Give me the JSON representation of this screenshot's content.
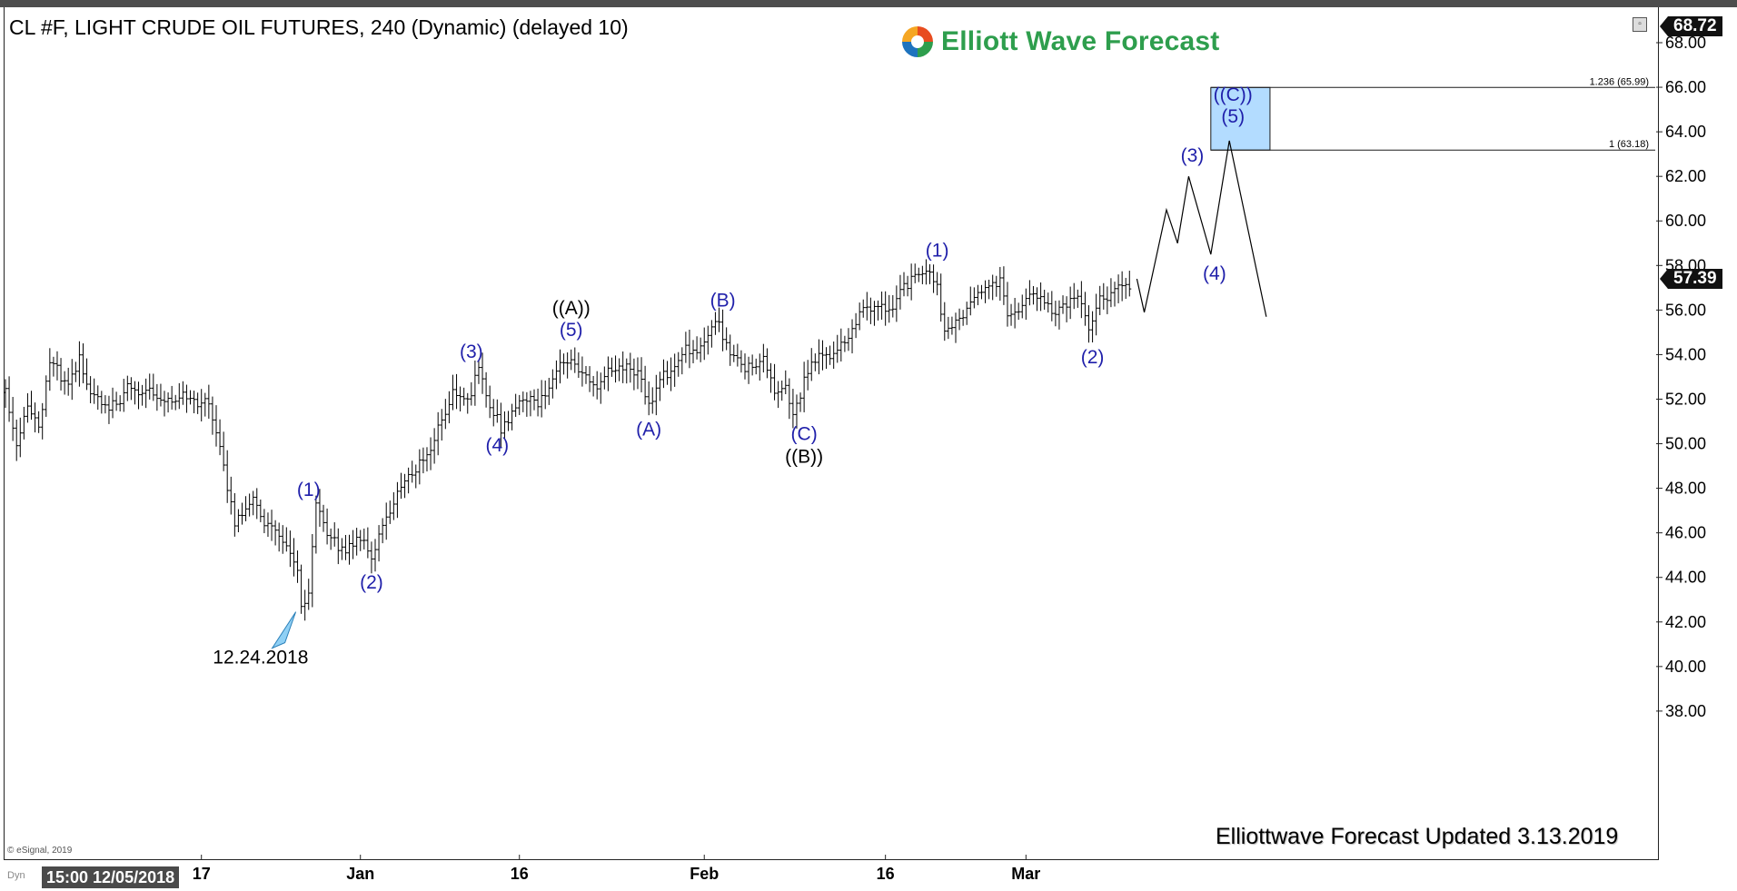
{
  "header": {
    "title": "CL #F, LIGHT CRUDE OIL FUTURES, 240 (Dynamic) (delayed 10)",
    "brand": "Elliott Wave Forecast",
    "updated": "Elliottwave Forecast Updated 3.13.2019",
    "watermark": "© eSignal, 2019",
    "time_box": "15:00 12/05/2018",
    "dyn_label": "Dyn",
    "price_top": "68.72",
    "price_last": "57.39",
    "brand_color": "#2e9e4d",
    "icons": [
      "restore-icon",
      "elliott-wave-logo-icon",
      "triangle-marker-icon"
    ]
  },
  "chart_data": {
    "type": "bar",
    "title": "CL #F, LIGHT CRUDE OIL FUTURES, 240 (Dynamic) (delayed 10)",
    "xlabel": "",
    "ylabel": "",
    "ylim": [
      37.5,
      68.9
    ],
    "y_ticks": [
      "38.00",
      "40.00",
      "42.00",
      "44.00",
      "46.00",
      "48.00",
      "50.00",
      "52.00",
      "54.00",
      "56.00",
      "58.00",
      "60.00",
      "62.00",
      "64.00",
      "66.00",
      "68.00"
    ],
    "x_ticks": [
      {
        "label": "17",
        "bar": 53
      },
      {
        "label": "Jan",
        "bar": 96
      },
      {
        "label": "16",
        "bar": 139
      },
      {
        "label": "Feb",
        "bar": 189
      },
      {
        "label": "16",
        "bar": 238
      },
      {
        "label": "Mar",
        "bar": 276
      }
    ],
    "last_price": 57.39,
    "top_price": 68.72,
    "grid": false,
    "anchors": [
      [
        0,
        52.3
      ],
      [
        3,
        50.2
      ],
      [
        6,
        52.0
      ],
      [
        9,
        50.4
      ],
      [
        12,
        53.5
      ],
      [
        17,
        52.7
      ],
      [
        20,
        54.0
      ],
      [
        23,
        52.1
      ],
      [
        28,
        51.3
      ],
      [
        33,
        52.7
      ],
      [
        38,
        52.3
      ],
      [
        43,
        51.8
      ],
      [
        48,
        52.5
      ],
      [
        51,
        52.0
      ],
      [
        55,
        51.6
      ],
      [
        58,
        49.8
      ],
      [
        62,
        46.6
      ],
      [
        66,
        47.6
      ],
      [
        70,
        46.3
      ],
      [
        75,
        45.7
      ],
      [
        79,
        44.6
      ],
      [
        80,
        42.7
      ],
      [
        82,
        43.1
      ],
      [
        84,
        47.0
      ],
      [
        88,
        45.5
      ],
      [
        92,
        45.4
      ],
      [
        96,
        46.0
      ],
      [
        99,
        44.6
      ],
      [
        102,
        46.2
      ],
      [
        106,
        48.0
      ],
      [
        110,
        48.9
      ],
      [
        114,
        49.2
      ],
      [
        118,
        51.0
      ],
      [
        121,
        52.5
      ],
      [
        125,
        52.2
      ],
      [
        128,
        53.1
      ],
      [
        131,
        51.5
      ],
      [
        134,
        50.8
      ],
      [
        137,
        51.5
      ],
      [
        140,
        52.3
      ],
      [
        144,
        51.6
      ],
      [
        147,
        52.4
      ],
      [
        150,
        53.7
      ],
      [
        153,
        54.1
      ],
      [
        156,
        53.0
      ],
      [
        160,
        52.3
      ],
      [
        164,
        53.3
      ],
      [
        168,
        53.7
      ],
      [
        171,
        53.1
      ],
      [
        174,
        51.5
      ],
      [
        177,
        52.7
      ],
      [
        181,
        53.8
      ],
      [
        184,
        54.5
      ],
      [
        187,
        53.8
      ],
      [
        190,
        54.8
      ],
      [
        193,
        55.3
      ],
      [
        196,
        54.3
      ],
      [
        199,
        53.7
      ],
      [
        202,
        53.2
      ],
      [
        205,
        53.7
      ],
      [
        208,
        52.3
      ],
      [
        211,
        52.7
      ],
      [
        213,
        51.4
      ],
      [
        216,
        52.8
      ],
      [
        219,
        53.6
      ],
      [
        222,
        54.0
      ],
      [
        225,
        54.5
      ],
      [
        228,
        55.0
      ],
      [
        231,
        55.7
      ],
      [
        235,
        56.0
      ],
      [
        239,
        56.1
      ],
      [
        243,
        57.2
      ],
      [
        247,
        57.3
      ],
      [
        250,
        57.5
      ],
      [
        252,
        56.9
      ],
      [
        254,
        55.1
      ],
      [
        257,
        55.6
      ],
      [
        260,
        55.9
      ],
      [
        263,
        56.6
      ],
      [
        266,
        57.0
      ],
      [
        269,
        57.6
      ],
      [
        271,
        55.8
      ],
      [
        274,
        56.0
      ],
      [
        277,
        56.5
      ],
      [
        280,
        56.3
      ],
      [
        283,
        56.0
      ],
      [
        286,
        56.3
      ],
      [
        289,
        56.7
      ],
      [
        292,
        55.7
      ],
      [
        293,
        55.0
      ],
      [
        296,
        56.3
      ],
      [
        299,
        57.0
      ],
      [
        302,
        57.4
      ],
      [
        304,
        57.2
      ]
    ],
    "projection": [
      [
        306,
        57.4
      ],
      [
        308,
        55.9
      ],
      [
        314,
        60.5
      ],
      [
        317,
        59.0
      ],
      [
        320,
        62.0
      ],
      [
        326,
        58.5
      ],
      [
        331,
        63.6
      ],
      [
        341,
        55.7
      ]
    ],
    "target_box": {
      "y_low": 63.18,
      "y_high": 65.99,
      "x_start": 326,
      "x_end": 342
    },
    "fib_levels": [
      {
        "label": "1.236 (65.99)",
        "value": 65.99
      },
      {
        "label": "1 (63.18)",
        "value": 63.18
      }
    ],
    "annotations": [
      {
        "text": "(1)",
        "bar": 82,
        "y": 47.0,
        "dy": -16,
        "color": "#1f1faa"
      },
      {
        "text": "(2)",
        "bar": 99,
        "y": 44.6,
        "dy": 19,
        "color": "#1f1faa"
      },
      {
        "text": "(3)",
        "bar": 126,
        "y": 53.2,
        "dy": -16,
        "color": "#1f1faa"
      },
      {
        "text": "(4)",
        "bar": 133,
        "y": 50.8,
        "dy": 20,
        "color": "#1f1faa"
      },
      {
        "text": "(5)",
        "bar": 153,
        "y": 54.1,
        "dy": -18,
        "color": "#1f1faa"
      },
      {
        "text": "((A))",
        "bar": 153,
        "y": 54.1,
        "dy": -42,
        "color": "#000000"
      },
      {
        "text": "(A)",
        "bar": 174,
        "y": 51.5,
        "dy": 20,
        "color": "#1f1faa"
      },
      {
        "text": "(B)",
        "bar": 194,
        "y": 55.5,
        "dy": -16,
        "color": "#1f1faa"
      },
      {
        "text": "(C)",
        "bar": 216,
        "y": 51.3,
        "dy": 20,
        "color": "#1f1faa"
      },
      {
        "text": "((B))",
        "bar": 216,
        "y": 51.3,
        "dy": 45,
        "color": "#000000"
      },
      {
        "text": "(1)",
        "bar": 252,
        "y": 57.7,
        "dy": -17,
        "color": "#1f1faa"
      },
      {
        "text": "(2)",
        "bar": 294,
        "y": 54.7,
        "dy": 19,
        "color": "#1f1faa"
      },
      {
        "text": "(3)",
        "bar": 321,
        "y": 62.0,
        "dy": -16,
        "color": "#1f1faa"
      },
      {
        "text": "(4)",
        "bar": 327,
        "y": 58.5,
        "dy": 20,
        "color": "#1f1faa"
      },
      {
        "text": "(5)",
        "bar": 332,
        "y": 63.6,
        "dy": -20,
        "color": "#1f1faa"
      },
      {
        "text": "((C))",
        "bar": 332,
        "y": 63.6,
        "dy": -44,
        "color": "#1f1faa"
      },
      {
        "text": "12.24.2018",
        "bar": 69,
        "y": 42.7,
        "dy": 55,
        "color": "#000000"
      }
    ],
    "box_color": "#b3dcff",
    "label_color": "#1f1faa"
  }
}
